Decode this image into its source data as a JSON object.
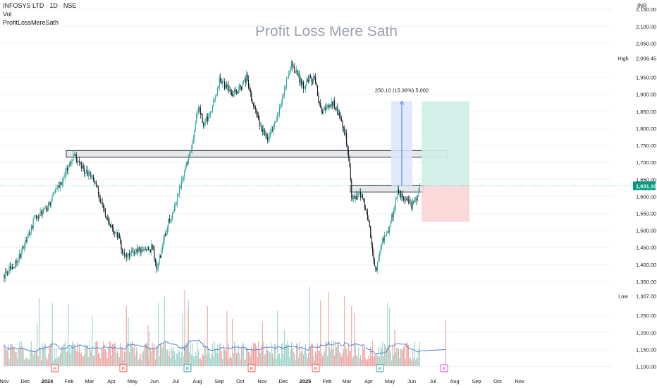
{
  "header": {
    "symbol": "INFOSYS LTD · 1D · NSE",
    "volume_label": "Vol",
    "indicator_label": "ProfitLossMereSath"
  },
  "watermark": "Profit Loss Mere Sath",
  "currency": "INR",
  "colors": {
    "up": "#26a69a",
    "down": "#131722",
    "vol_up": "#9fd4ca",
    "vol_down": "#f0a2a0",
    "vol_ma": "#4b7bd6",
    "target_zone": "#cfeee5",
    "stop_zone": "#fbd5d6",
    "measure": "#dbe6fb",
    "last_price": "#089981"
  },
  "chart_data": {
    "type": "candlestick",
    "y_axis": {
      "min": 1075,
      "max": 2225,
      "ticks": [
        "2,200.00",
        "2,150.00",
        "2,100.00",
        "2,050.00",
        "1,950.00",
        "1,900.00",
        "1,850.00",
        "1,800.00",
        "1,750.00",
        "1,700.00",
        "1,650.00",
        "1,600.00",
        "1,550.00",
        "1,500.00",
        "1,450.00",
        "1,400.00",
        "1,350.00",
        "1,250.00",
        "1,200.00",
        "1,150.00",
        "1,100.00"
      ],
      "high_label": "High",
      "high_value": "2,006.45",
      "low_label": "Low",
      "low_value": "1,307.00",
      "last_value": "1,631.10"
    },
    "x_axis": {
      "labels": [
        "Nov",
        "Dec",
        "2024",
        "Feb",
        "Mar",
        "Apr",
        "May",
        "Jun",
        "Jul",
        "Aug",
        "Sep",
        "Oct",
        "Nov",
        "Dec",
        "2025",
        "Feb",
        "Mar",
        "Apr",
        "May",
        "Jun",
        "Jul",
        "Aug",
        "Sep",
        "Oct",
        "Nov"
      ]
    },
    "price_path": [
      [
        "2023-11-01",
        1370
      ],
      [
        "2023-11-20",
        1410
      ],
      [
        "2023-12-15",
        1540
      ],
      [
        "2023-12-29",
        1560
      ],
      [
        "2024-01-08",
        1590
      ],
      [
        "2024-01-12",
        1620
      ],
      [
        "2024-01-25",
        1650
      ],
      [
        "2024-02-01",
        1700
      ],
      [
        "2024-02-08",
        1720
      ],
      [
        "2024-02-20",
        1680
      ],
      [
        "2024-03-05",
        1660
      ],
      [
        "2024-03-15",
        1600
      ],
      [
        "2024-03-28",
        1520
      ],
      [
        "2024-04-12",
        1480
      ],
      [
        "2024-04-19",
        1420
      ],
      [
        "2024-05-10",
        1440
      ],
      [
        "2024-05-30",
        1450
      ],
      [
        "2024-06-04",
        1380
      ],
      [
        "2024-06-20",
        1520
      ],
      [
        "2024-06-28",
        1560
      ],
      [
        "2024-07-10",
        1640
      ],
      [
        "2024-07-25",
        1760
      ],
      [
        "2024-08-02",
        1870
      ],
      [
        "2024-08-10",
        1810
      ],
      [
        "2024-08-22",
        1860
      ],
      [
        "2024-09-01",
        1940
      ],
      [
        "2024-09-20",
        1900
      ],
      [
        "2024-10-01",
        1920
      ],
      [
        "2024-10-10",
        1950
      ],
      [
        "2024-10-20",
        1860
      ],
      [
        "2024-10-30",
        1800
      ],
      [
        "2024-11-08",
        1770
      ],
      [
        "2024-11-20",
        1820
      ],
      [
        "2024-12-01",
        1900
      ],
      [
        "2024-12-12",
        1990
      ],
      [
        "2024-12-20",
        1960
      ],
      [
        "2024-12-30",
        1920
      ],
      [
        "2025-01-08",
        1950
      ],
      [
        "2025-01-15",
        1940
      ],
      [
        "2025-01-24",
        1840
      ],
      [
        "2025-02-01",
        1860
      ],
      [
        "2025-02-10",
        1880
      ],
      [
        "2025-02-18",
        1840
      ],
      [
        "2025-02-28",
        1770
      ],
      [
        "2025-03-05",
        1680
      ],
      [
        "2025-03-08",
        1590
      ],
      [
        "2025-03-20",
        1610
      ],
      [
        "2025-03-25",
        1580
      ],
      [
        "2025-04-01",
        1530
      ],
      [
        "2025-04-07",
        1420
      ],
      [
        "2025-04-11",
        1380
      ],
      [
        "2025-04-20",
        1470
      ],
      [
        "2025-05-01",
        1510
      ],
      [
        "2025-05-12",
        1620
      ],
      [
        "2025-05-20",
        1590
      ],
      [
        "2025-06-01",
        1570
      ],
      [
        "2025-06-10",
        1600
      ],
      [
        "2025-06-13",
        1630
      ]
    ],
    "support_zones": [
      {
        "from": "2024-01-28",
        "to": "2025-07-22",
        "low": 1715,
        "high": 1735
      },
      {
        "from": "2025-03-06",
        "to": "2025-06-18",
        "low": 1613,
        "high": 1633
      }
    ],
    "measure": {
      "from": "2025-05-03",
      "to": "2025-06-02",
      "low": 1630,
      "high": 1880,
      "label": "250.10 (15.36%) 5,002"
    },
    "position": {
      "from": "2025-06-15",
      "to": "2025-08-22",
      "entry": 1631.1,
      "target": 1880,
      "stop": 1525
    },
    "earnings_dates": [
      "2024-01-12",
      "2024-04-18",
      "2024-07-18",
      "2024-10-17",
      "2025-01-16",
      "2025-04-17",
      "2025-07-17"
    ],
    "volume_ma_visible": true
  }
}
